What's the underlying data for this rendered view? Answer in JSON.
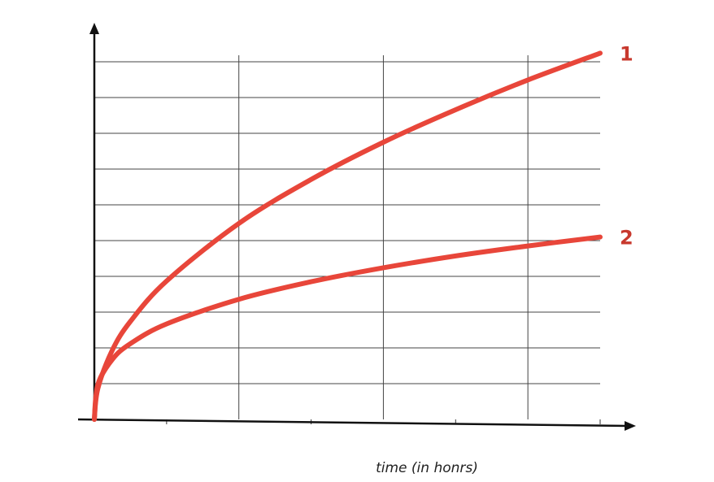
{
  "chart_data": {
    "type": "line",
    "title": "",
    "xlabel": "time (in honrs)",
    "ylabel": "",
    "xlim": [
      0,
      7
    ],
    "ylim": [
      0,
      10
    ],
    "grid": true,
    "series": [
      {
        "name": "1",
        "color": "#e8463a",
        "x": [
          0,
          0.05,
          0.25,
          0.5,
          1,
          2,
          3,
          4,
          5,
          6,
          7
        ],
        "y": [
          0,
          0.87,
          1.94,
          2.74,
          3.87,
          5.48,
          6.71,
          7.75,
          8.66,
          9.49,
          10.24
        ]
      },
      {
        "name": "2",
        "color": "#e8463a",
        "x": [
          0,
          0.05,
          0.25,
          0.5,
          1,
          2,
          3,
          4,
          5,
          6,
          7
        ],
        "y": [
          0,
          0.98,
          1.68,
          2.12,
          2.67,
          3.36,
          3.85,
          4.24,
          4.57,
          4.85,
          5.1
        ]
      }
    ]
  }
}
